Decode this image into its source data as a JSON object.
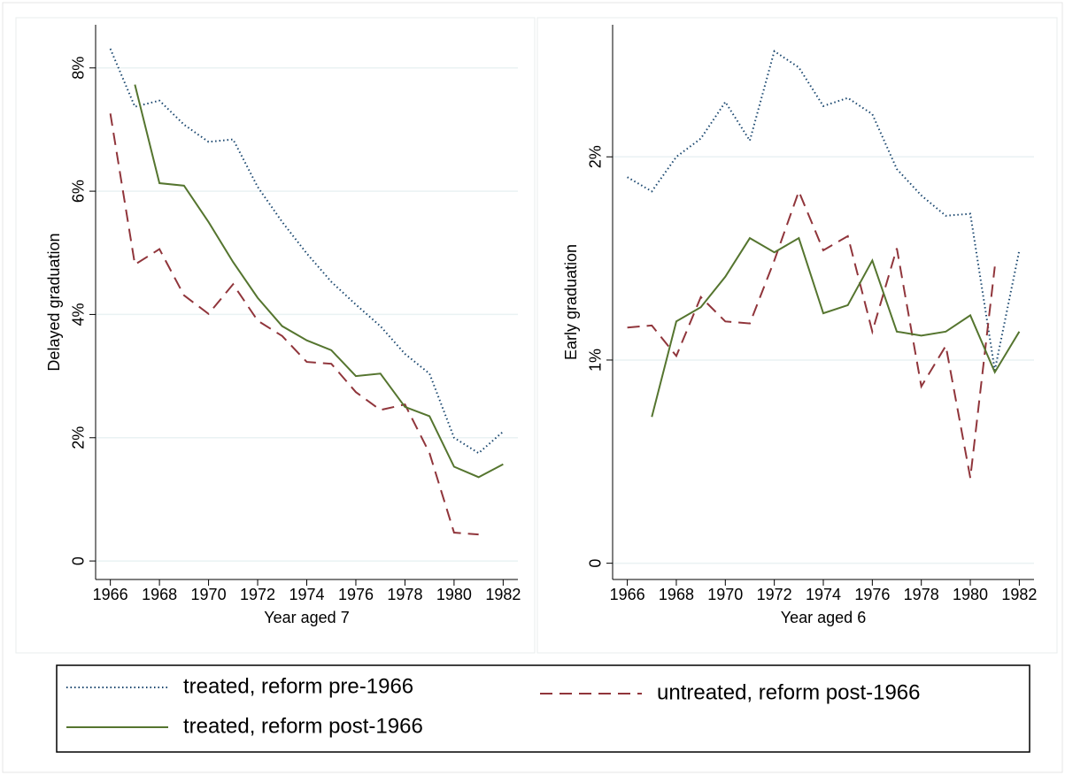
{
  "chart_data": [
    {
      "type": "line",
      "ylabel": "Delayed graduation",
      "xlabel": "Year aged 7",
      "x": [
        1966,
        1967,
        1968,
        1969,
        1970,
        1971,
        1972,
        1973,
        1974,
        1975,
        1976,
        1977,
        1978,
        1979,
        1980,
        1981,
        1982
      ],
      "xlim": [
        1965.4,
        1982.6
      ],
      "xticks": [
        1966,
        1968,
        1970,
        1972,
        1974,
        1976,
        1978,
        1980,
        1982
      ],
      "ylim": [
        -0.3,
        8.7
      ],
      "yticks": [
        0,
        {
          "value": 2,
          "label": "2%"
        },
        {
          "value": 4,
          "label": "4%"
        },
        {
          "value": 6,
          "label": "6%"
        },
        {
          "value": 8,
          "label": "8%"
        }
      ],
      "grid": true,
      "series": [
        {
          "name": "treated, reform pre-1966",
          "color": "#1a476f",
          "style": "dotted",
          "values": [
            8.31,
            7.37,
            7.47,
            7.08,
            6.8,
            6.84,
            6.07,
            5.5,
            4.99,
            4.53,
            4.16,
            3.81,
            3.36,
            3.04,
            2.0,
            1.75,
            2.1
          ]
        },
        {
          "name": "untreated, reform post-1966",
          "color": "#90353b",
          "style": "dashed",
          "values": [
            7.26,
            4.81,
            5.06,
            4.31,
            4.01,
            4.49,
            3.9,
            3.65,
            3.23,
            3.2,
            2.74,
            2.45,
            2.54,
            1.75,
            0.46,
            0.43,
            null
          ]
        },
        {
          "name": "treated, reform post-1966",
          "color": "#55752f",
          "style": "solid",
          "values": [
            null,
            7.73,
            6.13,
            6.09,
            5.5,
            4.85,
            4.27,
            3.81,
            3.58,
            3.42,
            3.0,
            3.04,
            2.5,
            2.35,
            1.53,
            1.36,
            1.57
          ]
        }
      ]
    },
    {
      "type": "line",
      "ylabel": "Early graduation",
      "xlabel": "Year aged 6",
      "x": [
        1966,
        1967,
        1968,
        1969,
        1970,
        1971,
        1972,
        1973,
        1974,
        1975,
        1976,
        1977,
        1978,
        1979,
        1980,
        1981,
        1982
      ],
      "xlim": [
        1965.4,
        1982.6
      ],
      "xticks": [
        1966,
        1968,
        1970,
        1972,
        1974,
        1976,
        1978,
        1980,
        1982
      ],
      "ylim": [
        -0.08,
        2.65
      ],
      "yticks": [
        0,
        {
          "value": 1,
          "label": "1%"
        },
        {
          "value": 2,
          "label": "2%"
        }
      ],
      "grid": true,
      "series": [
        {
          "color": "#1a476f",
          "style": "dotted",
          "values": [
            1.9,
            1.83,
            2.0,
            2.09,
            2.27,
            2.08,
            2.52,
            2.44,
            2.25,
            2.29,
            2.21,
            1.94,
            1.81,
            1.71,
            1.72,
            0.95,
            1.54
          ]
        },
        {
          "color": "#90353b",
          "style": "dashed",
          "values": [
            1.16,
            1.17,
            1.02,
            1.31,
            1.19,
            1.18,
            1.49,
            1.83,
            1.54,
            1.61,
            1.14,
            1.55,
            0.87,
            1.07,
            0.42,
            1.46,
            null
          ]
        },
        {
          "color": "#55752f",
          "style": "solid",
          "values": [
            null,
            0.72,
            1.19,
            1.26,
            1.41,
            1.6,
            1.53,
            1.6,
            1.23,
            1.27,
            1.49,
            1.14,
            1.12,
            1.14,
            1.22,
            0.94,
            1.14
          ]
        }
      ]
    }
  ]
}
